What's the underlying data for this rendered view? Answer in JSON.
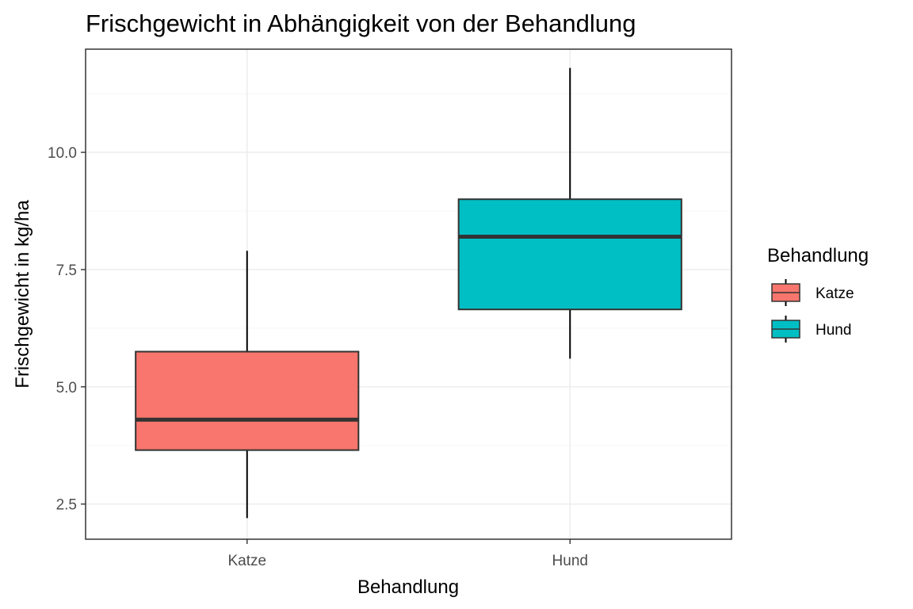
{
  "chart_data": {
    "type": "boxplot",
    "title": "Frischgewicht in Abhängigkeit von der Behandlung",
    "xlabel": "Behandlung",
    "ylabel": "Frischgewicht in kg/ha",
    "ylim": [
      1.75,
      12.2
    ],
    "yticks": [
      2.5,
      5.0,
      7.5,
      10.0
    ],
    "ytick_labels": [
      "2.5",
      "5.0",
      "7.5",
      "10.0"
    ],
    "categories": [
      "Katze",
      "Hund"
    ],
    "boxes": [
      {
        "category": "Katze",
        "min": 2.2,
        "q1": 3.65,
        "median": 4.3,
        "q3": 5.75,
        "max": 7.9,
        "color": "#F8766D"
      },
      {
        "category": "Hund",
        "min": 5.6,
        "q1": 6.65,
        "median": 8.2,
        "q3": 9.0,
        "max": 11.8,
        "color": "#00BFC4"
      }
    ],
    "grid": true,
    "legend": {
      "title": "Behandlung",
      "position": "right",
      "entries": [
        "Katze",
        "Hund"
      ]
    }
  }
}
